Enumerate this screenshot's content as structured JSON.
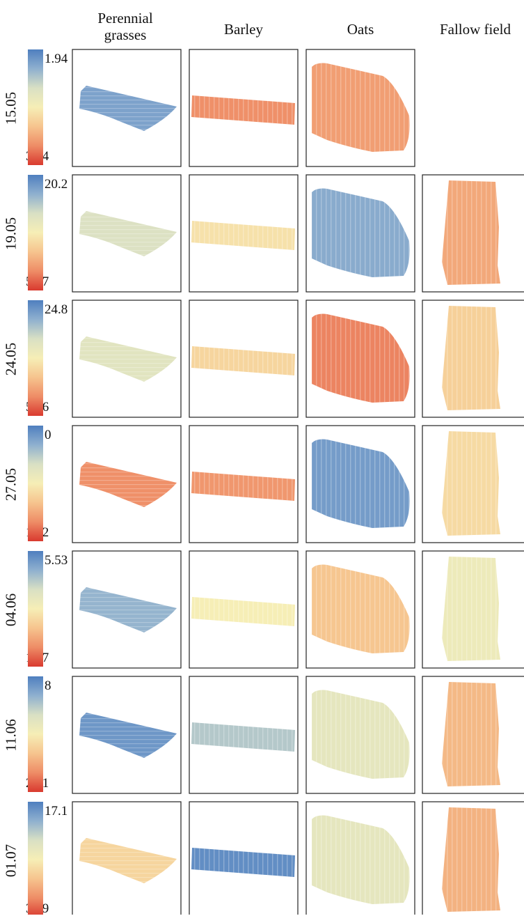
{
  "columns": [
    "Perennial\ngrasses",
    "Barley",
    "Oats",
    "Fallow field"
  ],
  "rows": [
    {
      "date": "15.05",
      "max": "1.94",
      "min": "37.4",
      "fields": {
        "grass": 0.12,
        "barley": 0.82,
        "oats": 0.78,
        "fallow": null
      }
    },
    {
      "date": "19.05",
      "max": "20.2",
      "min": "52.7",
      "fields": {
        "grass": 0.35,
        "barley": 0.55,
        "oats": 0.15,
        "fallow": 0.75
      }
    },
    {
      "date": "24.05",
      "max": "24.8",
      "min": "50.6",
      "fields": {
        "grass": 0.38,
        "barley": 0.6,
        "oats": 0.85,
        "fallow": 0.62
      }
    },
    {
      "date": "27.05",
      "max": "0",
      "min": "17.2",
      "fields": {
        "grass": 0.82,
        "barley": 0.8,
        "oats": 0.1,
        "fallow": 0.58
      }
    },
    {
      "date": "04.06",
      "max": "5.53",
      "min": "16.7",
      "fields": {
        "grass": 0.18,
        "barley": 0.5,
        "oats": 0.66,
        "fallow": 0.45
      }
    },
    {
      "date": "11.06",
      "max": "8",
      "min": "21.1",
      "fields": {
        "grass": 0.08,
        "barley": 0.25,
        "oats": 0.4,
        "fallow": 0.7
      }
    },
    {
      "date": "01.07",
      "max": "17.1",
      "min": "37.9",
      "fields": {
        "grass": 0.6,
        "barley": 0.05,
        "oats": 0.4,
        "fallow": 0.72
      }
    }
  ],
  "colormap": [
    "#4f7fbf",
    "#8fb0cf",
    "#d9e0c4",
    "#f6eeb6",
    "#f6c48e",
    "#ee8c66",
    "#d93a2f"
  ]
}
